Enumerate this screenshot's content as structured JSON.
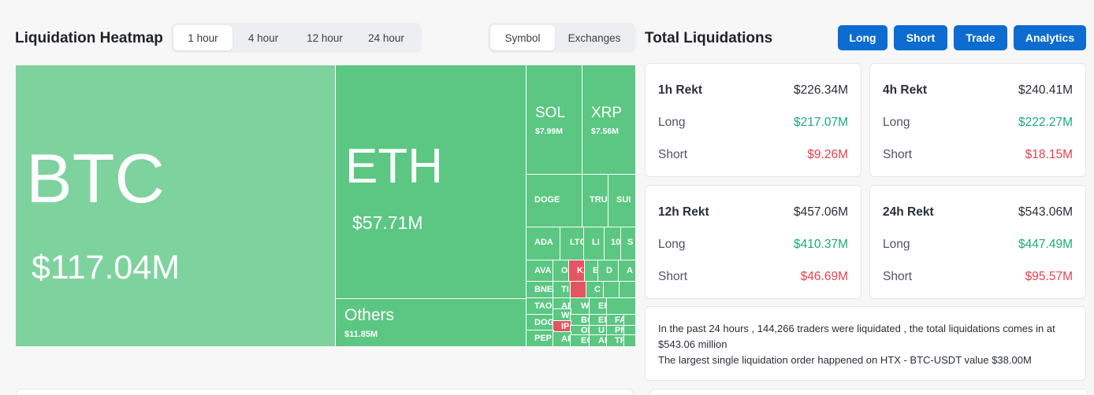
{
  "heatmap": {
    "title": "Liquidation Heatmap",
    "time_options": [
      "1 hour",
      "4 hour",
      "12 hour",
      "24 hour"
    ],
    "time_selected": "1 hour",
    "view_options": [
      "Symbol",
      "Exchanges"
    ],
    "view_selected": "Symbol",
    "tiles": {
      "btc": {
        "symbol": "BTC",
        "value": "$117.04M"
      },
      "eth": {
        "symbol": "ETH",
        "value": "$57.71M"
      },
      "others": {
        "symbol": "Others",
        "value": "$11.85M"
      },
      "sol": {
        "symbol": "SOL",
        "value": "$7.99M"
      },
      "xrp": {
        "symbol": "XRP",
        "value": "$7.56M"
      },
      "doge": {
        "symbol": "DOGE"
      },
      "tru": {
        "symbol": "TRU"
      },
      "sui": {
        "symbol": "SUI"
      },
      "ada": {
        "symbol": "ADA"
      },
      "ltc": {
        "symbol": "LTC"
      },
      "li": {
        "symbol": "LI"
      },
      "t10": {
        "symbol": "10"
      },
      "s": {
        "symbol": "S"
      },
      "ava": {
        "symbol": "AVA"
      },
      "bne": {
        "symbol": "BNE"
      },
      "tao": {
        "symbol": "TAO"
      },
      "doc": {
        "symbol": "DOG"
      },
      "pep": {
        "symbol": "PEP"
      },
      "o1": {
        "symbol": "O"
      },
      "ka": {
        "symbol": "KA"
      },
      "e1": {
        "symbol": "E"
      },
      "d1": {
        "symbol": "D"
      },
      "a1": {
        "symbol": "A"
      },
      "ti": {
        "symbol": "TI"
      },
      "c1": {
        "symbol": "C"
      },
      "ar": {
        "symbol": "AR"
      },
      "w1": {
        "symbol": "W"
      },
      "ei": {
        "symbol": "EI"
      },
      "wh": {
        "symbol": "WH"
      },
      "bo": {
        "symbol": "BO"
      },
      "ep": {
        "symbol": "EI"
      },
      "ip": {
        "symbol": "IP"
      },
      "ol": {
        "symbol": "OI"
      },
      "u1": {
        "symbol": "U"
      },
      "fa": {
        "symbol": "FA"
      },
      "ap": {
        "symbol": "AP"
      },
      "ec": {
        "symbol": "EC"
      },
      "ai": {
        "symbol": "AI"
      },
      "pn": {
        "symbol": "PN"
      },
      "tr": {
        "symbol": "TR"
      }
    }
  },
  "totals": {
    "title": "Total Liquidations",
    "buttons": [
      "Long",
      "Short",
      "Trade",
      "Analytics"
    ],
    "long_label": "Long",
    "short_label": "Short",
    "cards": [
      {
        "title": "1h Rekt",
        "total": "$226.34M",
        "long": "$217.07M",
        "short": "$9.26M"
      },
      {
        "title": "4h Rekt",
        "total": "$240.41M",
        "long": "$222.27M",
        "short": "$18.15M"
      },
      {
        "title": "12h Rekt",
        "total": "$457.06M",
        "long": "$410.37M",
        "short": "$46.69M"
      },
      {
        "title": "24h Rekt",
        "total": "$543.06M",
        "long": "$447.49M",
        "short": "$95.57M"
      }
    ],
    "summary_line1": "In the past 24 hours , 144,266 traders were liquidated , the total liquidations comes in at $543.06 million",
    "summary_line2": "The largest single liquidation order happened on HTX - BTC-USDT value $38.00M"
  },
  "colors": {
    "btc_tile": "#7ed29e",
    "long_tile": "#5bc782",
    "short_tile": "#e35561",
    "button": "#0c6ccf",
    "positive": "#1ea97c",
    "negative": "#e6404f"
  }
}
